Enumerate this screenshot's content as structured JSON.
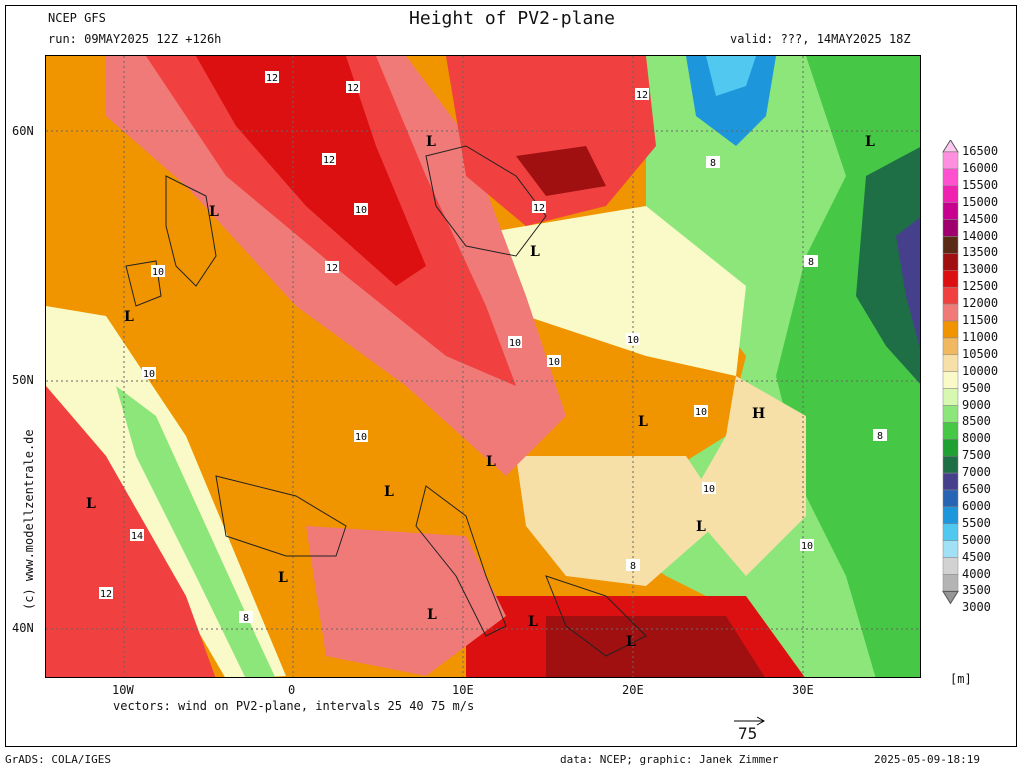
{
  "header": {
    "model": "NCEP GFS",
    "run": "run: 09MAY2025 12Z +126h",
    "title": "Height of PV2-plane",
    "valid": "valid: ???, 14MAY2025 18Z"
  },
  "map": {
    "lat_labels": [
      "60N",
      "50N",
      "40N"
    ],
    "lon_labels": [
      "10W",
      "0",
      "10E",
      "20E",
      "30E"
    ],
    "contour_labels": [
      "12",
      "12",
      "12",
      "12",
      "10",
      "10",
      "10",
      "10",
      "10",
      "10",
      "10",
      "10",
      "10",
      "10",
      "8",
      "8",
      "8",
      "8",
      "8",
      "12",
      "12",
      "12",
      "14"
    ],
    "pressure_markers": [
      "L",
      "L",
      "L",
      "L",
      "L",
      "L",
      "L",
      "L",
      "L",
      "L",
      "L",
      "L",
      "L",
      "L",
      "H"
    ]
  },
  "legend": {
    "unit": "[m]",
    "levels": [
      "16500",
      "16000",
      "15500",
      "15000",
      "14500",
      "14000",
      "13500",
      "13000",
      "12500",
      "12000",
      "11500",
      "11000",
      "10500",
      "10000",
      "9500",
      "9000",
      "8500",
      "8000",
      "7500",
      "7000",
      "6500",
      "6000",
      "5500",
      "5000",
      "4500",
      "4000",
      "3500",
      "3000"
    ],
    "colors": [
      "#ffc8f0",
      "#ff90e0",
      "#ff50d0",
      "#f020b0",
      "#c80090",
      "#a0006e",
      "#5a2a14",
      "#a01010",
      "#dc1010",
      "#f04040",
      "#f07a78",
      "#f09400",
      "#f0b860",
      "#f6e0a8",
      "#fafac8",
      "#d6f8b0",
      "#8ce67a",
      "#46c846",
      "#1ea032",
      "#1e6e46",
      "#46408c",
      "#2864b4",
      "#1e96dc",
      "#50c8f0",
      "#a0e1f5",
      "#d2d2d2",
      "#b4b4b4",
      "#969696"
    ]
  },
  "footer": {
    "vectors": "vectors: wind on PV2-plane, intervals 25 40 75 m/s",
    "vector_ref": "75",
    "grads": "GrADS: COLA/IGES",
    "credit": "data: NCEP; graphic: Janek Zimmer",
    "timestamp": "2025-05-09-18:19",
    "watermark": "(c) www.modellzentrale.de"
  }
}
